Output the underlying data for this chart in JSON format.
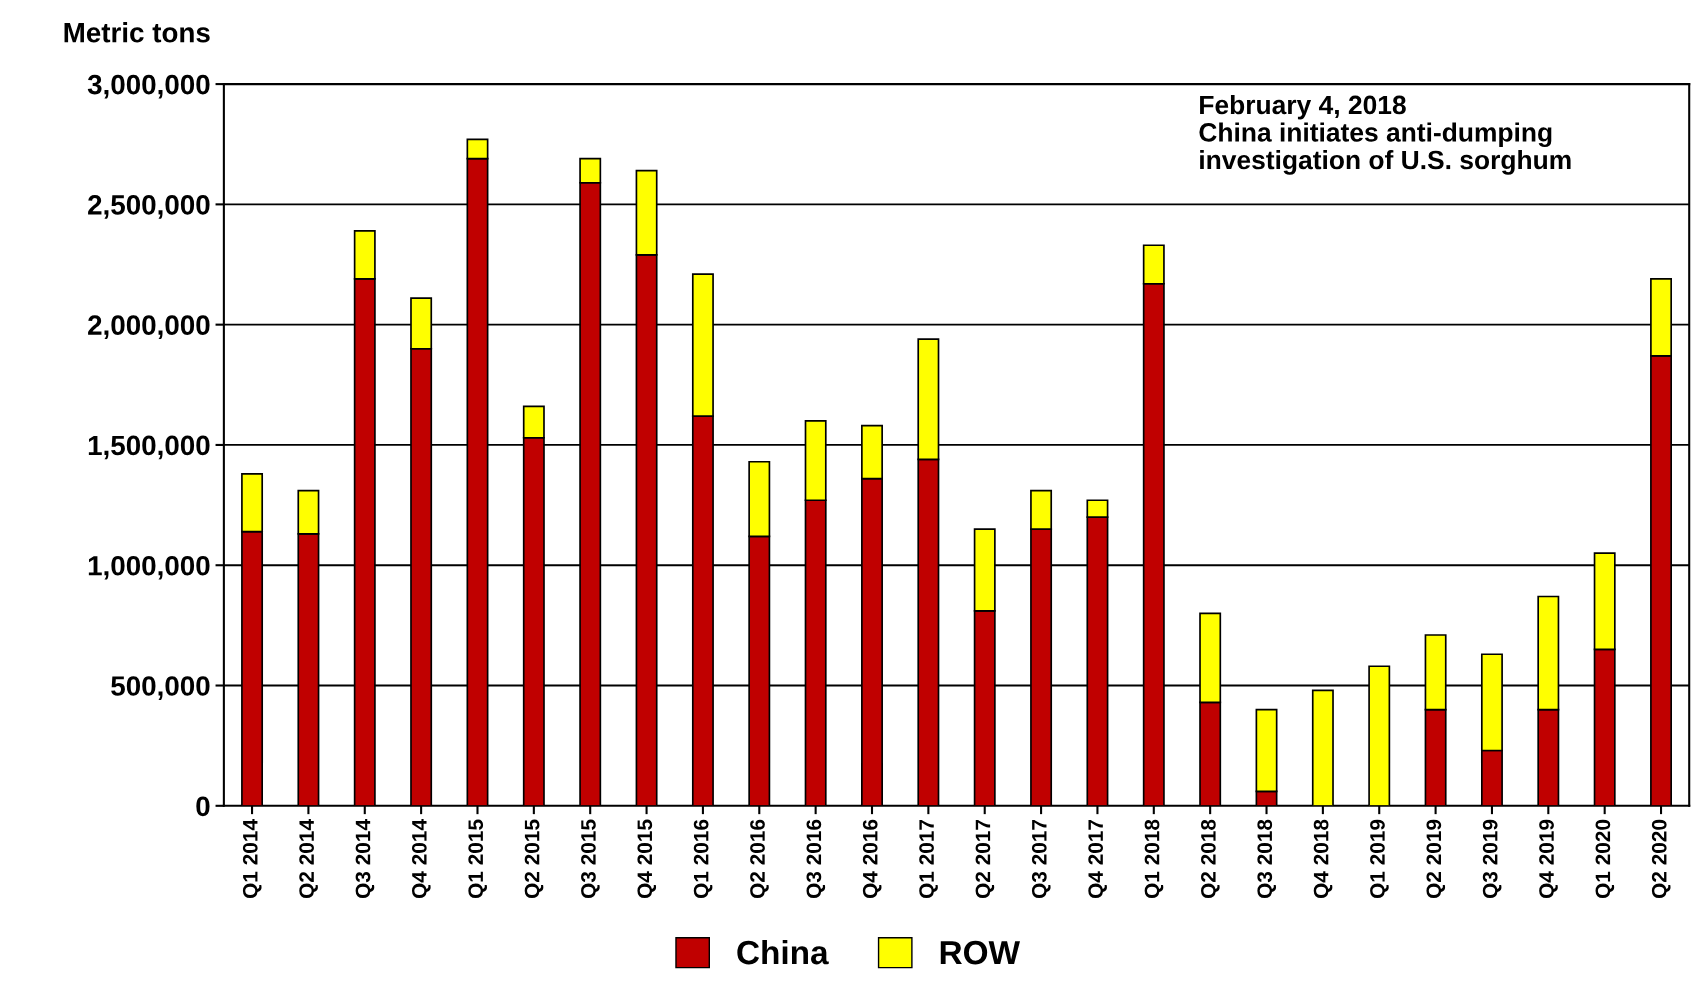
{
  "chart_data": {
    "type": "bar",
    "stacked": true,
    "ylabel": "Metric tons",
    "categories": [
      "Q1 2014",
      "Q2 2014",
      "Q3 2014",
      "Q4 2014",
      "Q1 2015",
      "Q2 2015",
      "Q3 2015",
      "Q4 2015",
      "Q1 2016",
      "Q2 2016",
      "Q3 2016",
      "Q4 2016",
      "Q1 2017",
      "Q2 2017",
      "Q3 2017",
      "Q4 2017",
      "Q1 2018",
      "Q2 2018",
      "Q3 2018",
      "Q4 2018",
      "Q1 2019",
      "Q2 2019",
      "Q3 2019",
      "Q4 2019",
      "Q1 2020",
      "Q2 2020"
    ],
    "series": [
      {
        "name": "China",
        "color": "#c00000",
        "values": [
          1140000,
          1130000,
          2190000,
          1900000,
          2690000,
          1530000,
          2590000,
          2290000,
          1620000,
          1120000,
          1270000,
          1360000,
          1440000,
          810000,
          1150000,
          1200000,
          2170000,
          430000,
          60000,
          0,
          0,
          400000,
          230000,
          400000,
          650000,
          1870000
        ]
      },
      {
        "name": "ROW",
        "color": "#ffff00",
        "values": [
          240000,
          180000,
          200000,
          210000,
          80000,
          130000,
          100000,
          350000,
          590000,
          310000,
          330000,
          220000,
          500000,
          340000,
          160000,
          70000,
          160000,
          370000,
          340000,
          480000,
          580000,
          310000,
          400000,
          470000,
          400000,
          320000
        ]
      }
    ],
    "ylim": [
      0,
      3000000
    ],
    "yticks": [
      {
        "value": 0,
        "label": "0"
      },
      {
        "value": 500000,
        "label": "500,000"
      },
      {
        "value": 1000000,
        "label": "1,000,000"
      },
      {
        "value": 1500000,
        "label": "1,500,000"
      },
      {
        "value": 2000000,
        "label": "2,000,000"
      },
      {
        "value": 2500000,
        "label": "2,500,000"
      },
      {
        "value": 3000000,
        "label": "3,000,000"
      }
    ],
    "grid": "y",
    "legend": "bottom",
    "annotations": [
      "February 4, 2018\nChina initiates anti-dumping\ninvestigation of U.S. sorghum"
    ]
  }
}
